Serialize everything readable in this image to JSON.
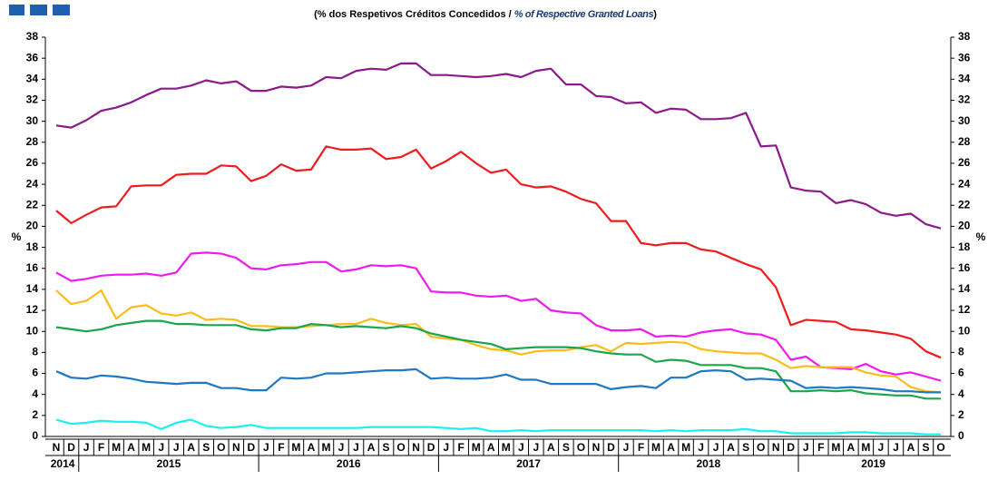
{
  "chart_data": {
    "type": "line",
    "subtitle": [
      "(% dos Respetivos  Créditos Concedidos / ",
      "% of Respective Granted Loans",
      ")"
    ],
    "ylabel": "%",
    "categories": [
      "N",
      "D",
      "J",
      "F",
      "M",
      "A",
      "M",
      "J",
      "J",
      "A",
      "S",
      "O",
      "N",
      "D",
      "J",
      "F",
      "M",
      "A",
      "M",
      "J",
      "J",
      "A",
      "S",
      "O",
      "N",
      "D",
      "J",
      "F",
      "M",
      "A",
      "M",
      "J",
      "J",
      "A",
      "S",
      "O",
      "N",
      "D",
      "J",
      "F",
      "M",
      "A",
      "M",
      "J",
      "J",
      "A",
      "S",
      "O",
      "N",
      "D",
      "J",
      "F",
      "M",
      "A",
      "M",
      "J",
      "J",
      "A",
      "S",
      "O"
    ],
    "years": [
      "2014",
      "2015",
      "2016",
      "2017",
      "2018",
      "2019"
    ],
    "ylim": [
      0,
      38
    ],
    "yticks": [
      0,
      2,
      4,
      6,
      8,
      10,
      12,
      14,
      16,
      18,
      20,
      22,
      24,
      26,
      28,
      30,
      32,
      34,
      36,
      38
    ],
    "series": [
      {
        "color": "#8b1a8b",
        "values": [
          29.6,
          29.4,
          30.1,
          31.0,
          31.3,
          31.8,
          32.5,
          33.1,
          33.1,
          33.4,
          33.9,
          33.6,
          33.8,
          32.9,
          32.9,
          33.3,
          33.2,
          33.4,
          34.2,
          34.1,
          34.8,
          35.0,
          34.9,
          35.5,
          35.5,
          34.4,
          34.4,
          34.3,
          34.2,
          34.3,
          34.5,
          34.2,
          34.8,
          35.0,
          33.5,
          33.5,
          32.4,
          32.3,
          31.7,
          31.8,
          30.8,
          31.2,
          31.1,
          30.2,
          30.2,
          30.3,
          30.8,
          27.6,
          27.7,
          23.7,
          23.4,
          23.3,
          22.2,
          22.5,
          22.1,
          21.3,
          21.0,
          21.2,
          20.2,
          19.8
        ]
      },
      {
        "color": "#ee1c1c",
        "values": [
          21.5,
          20.3,
          21.1,
          21.8,
          21.9,
          23.8,
          23.9,
          23.9,
          24.9,
          25.0,
          25.0,
          25.8,
          25.7,
          24.3,
          24.8,
          25.9,
          25.3,
          25.4,
          27.6,
          27.3,
          27.3,
          27.4,
          26.4,
          26.6,
          27.3,
          25.5,
          26.2,
          27.1,
          26.0,
          25.1,
          25.4,
          24.0,
          23.7,
          23.8,
          23.3,
          22.6,
          22.2,
          20.5,
          20.5,
          18.4,
          18.2,
          18.4,
          18.4,
          17.8,
          17.6,
          17.0,
          16.4,
          15.9,
          14.2,
          10.6,
          11.1,
          11.0,
          10.9,
          10.2,
          10.1,
          9.9,
          9.7,
          9.3,
          8.1,
          7.5
        ]
      },
      {
        "color": "#f01af0",
        "values": [
          15.6,
          14.8,
          15.0,
          15.3,
          15.4,
          15.4,
          15.5,
          15.3,
          15.6,
          17.4,
          17.5,
          17.4,
          17.0,
          16.0,
          15.9,
          16.3,
          16.4,
          16.6,
          16.6,
          15.7,
          15.9,
          16.3,
          16.2,
          16.3,
          16.0,
          13.8,
          13.7,
          13.7,
          13.4,
          13.3,
          13.4,
          12.9,
          13.1,
          12.0,
          11.8,
          11.7,
          10.6,
          10.1,
          10.1,
          10.2,
          9.5,
          9.6,
          9.5,
          9.9,
          10.1,
          10.2,
          9.8,
          9.7,
          9.2,
          7.3,
          7.6,
          6.6,
          6.5,
          6.4,
          6.9,
          6.2,
          5.9,
          6.1,
          5.7,
          5.3
        ]
      },
      {
        "color": "#fbbc1c",
        "values": [
          13.9,
          12.6,
          12.9,
          13.9,
          11.2,
          12.3,
          12.5,
          11.7,
          11.5,
          11.8,
          11.1,
          11.2,
          11.1,
          10.5,
          10.5,
          10.4,
          10.4,
          10.5,
          10.6,
          10.7,
          10.7,
          11.2,
          10.8,
          10.6,
          10.7,
          9.5,
          9.3,
          9.2,
          8.7,
          8.3,
          8.2,
          7.8,
          8.1,
          8.2,
          8.2,
          8.5,
          8.7,
          8.1,
          8.9,
          8.8,
          8.9,
          9.0,
          8.9,
          8.3,
          8.1,
          8.0,
          7.9,
          7.9,
          7.3,
          6.5,
          6.7,
          6.6,
          6.6,
          6.6,
          6.1,
          5.8,
          5.7,
          4.7,
          4.3,
          4.2
        ]
      },
      {
        "color": "#1aa64a",
        "values": [
          10.4,
          10.2,
          10.0,
          10.2,
          10.6,
          10.8,
          11.0,
          11.0,
          10.7,
          10.7,
          10.6,
          10.6,
          10.6,
          10.2,
          10.1,
          10.3,
          10.3,
          10.7,
          10.6,
          10.4,
          10.5,
          10.4,
          10.3,
          10.5,
          10.3,
          9.8,
          9.5,
          9.2,
          9.0,
          8.8,
          8.3,
          8.4,
          8.5,
          8.5,
          8.5,
          8.4,
          8.1,
          7.9,
          7.8,
          7.8,
          7.1,
          7.3,
          7.2,
          6.8,
          6.8,
          6.8,
          6.5,
          6.5,
          6.2,
          4.3,
          4.3,
          4.4,
          4.3,
          4.4,
          4.1,
          4.0,
          3.9,
          3.9,
          3.6,
          3.6
        ]
      },
      {
        "color": "#1f78c0",
        "values": [
          6.2,
          5.6,
          5.5,
          5.8,
          5.7,
          5.5,
          5.2,
          5.1,
          5.0,
          5.1,
          5.1,
          4.6,
          4.6,
          4.4,
          4.4,
          5.6,
          5.5,
          5.6,
          6.0,
          6.0,
          6.1,
          6.2,
          6.3,
          6.3,
          6.4,
          5.5,
          5.6,
          5.5,
          5.5,
          5.6,
          5.9,
          5.4,
          5.4,
          5.0,
          5.0,
          5.0,
          5.0,
          4.5,
          4.7,
          4.8,
          4.6,
          5.6,
          5.6,
          6.2,
          6.3,
          6.2,
          5.4,
          5.5,
          5.4,
          5.3,
          4.6,
          4.7,
          4.6,
          4.7,
          4.6,
          4.5,
          4.3,
          4.3,
          4.2,
          4.2
        ]
      },
      {
        "color": "#1af0f0",
        "values": [
          1.6,
          1.2,
          1.3,
          1.5,
          1.4,
          1.4,
          1.3,
          0.7,
          1.3,
          1.6,
          1.0,
          0.8,
          0.9,
          1.1,
          0.8,
          0.8,
          0.8,
          0.8,
          0.8,
          0.8,
          0.8,
          0.9,
          0.9,
          0.9,
          0.9,
          0.9,
          0.8,
          0.7,
          0.8,
          0.5,
          0.5,
          0.6,
          0.5,
          0.6,
          0.6,
          0.6,
          0.6,
          0.6,
          0.6,
          0.6,
          0.5,
          0.6,
          0.5,
          0.6,
          0.6,
          0.6,
          0.7,
          0.5,
          0.5,
          0.3,
          0.3,
          0.3,
          0.3,
          0.4,
          0.4,
          0.3,
          0.3,
          0.3,
          0.2,
          0.2
        ]
      }
    ]
  }
}
